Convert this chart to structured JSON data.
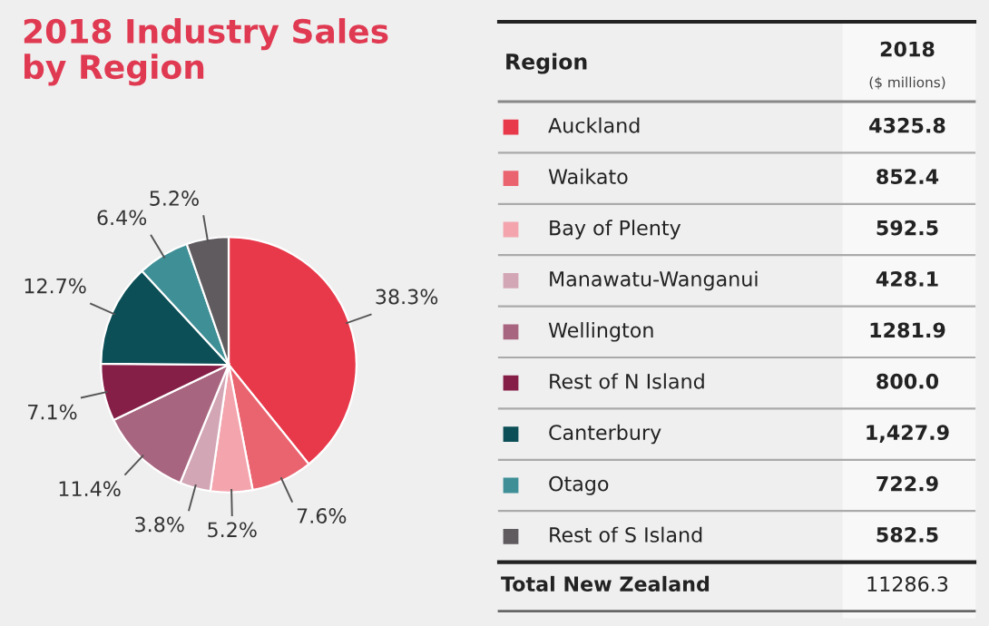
{
  "chart_data": [
    {
      "type": "pie",
      "title": "2018 Industry Sales\nby Region",
      "legend_title": "Region",
      "categories": [
        "Auckland",
        "Waikato",
        "Bay of Plenty",
        "Manawatu-Wanganui",
        "Wellington",
        "Rest of N Island",
        "Canterbury",
        "Otago",
        "Rest of S Island"
      ],
      "values": [
        38.3,
        7.6,
        5.2,
        3.8,
        11.4,
        7.1,
        12.7,
        6.4,
        5.2
      ],
      "value_labels": [
        "38.3%",
        "7.6%",
        "5.2%",
        "3.8%",
        "11.4%",
        "7.1%",
        "12.7%",
        "6.4%",
        "5.2%"
      ],
      "colors": [
        "#e8394b",
        "#ea6470",
        "#f3a4ad",
        "#d3a6b6",
        "#a8657f",
        "#851f47",
        "#0c4f57",
        "#3f8f96",
        "#5f5b5f"
      ],
      "legend": "right"
    },
    {
      "type": "other",
      "annotations": [
        "2018",
        "($ millions)",
        "4325.8",
        "852.4",
        "592.5",
        "428.1",
        "1281.9",
        "800.0",
        "1,427.9",
        "722.9",
        "582.5",
        "Total New Zealand",
        "11286.3"
      ]
    }
  ]
}
